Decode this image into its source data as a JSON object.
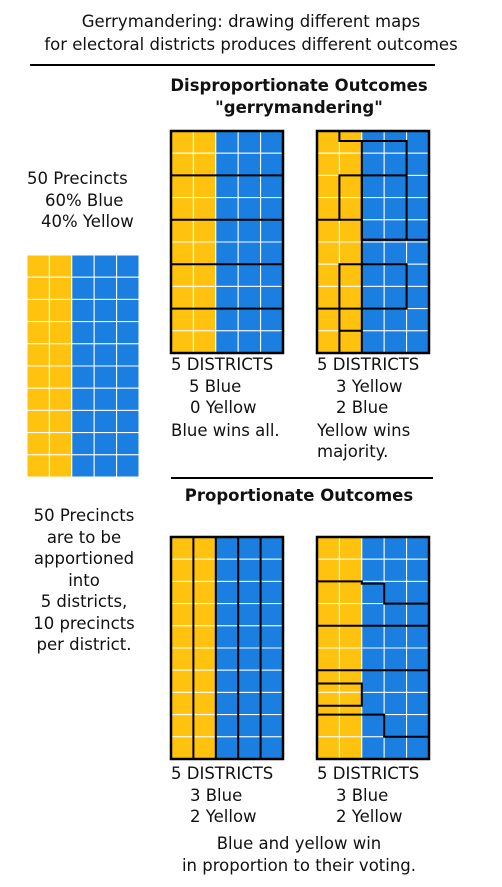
{
  "title": {
    "line1": "Gerrymandering: drawing different maps",
    "line2": "for electoral districts produces different outcomes"
  },
  "colors": {
    "blue": "#1a7fe0",
    "yellow": "#ffc20e",
    "line": "#000000",
    "grid": "#ffffff"
  },
  "left": {
    "header": [
      "50 Precincts",
      "60% Blue",
      "40% Yellow"
    ],
    "footer": [
      "50 Precincts",
      "are to be",
      "apportioned",
      "into",
      "5 districts,",
      "10 precincts",
      "per district."
    ]
  },
  "disproportionate": {
    "heading1": "Disproportionate Outcomes",
    "heading2": "\"gerrymandering\"",
    "map_a": {
      "caption": [
        "5 DISTRICTS",
        "5 Blue",
        "0 Yellow",
        "Blue wins all."
      ]
    },
    "map_b": {
      "caption": [
        "5 DISTRICTS",
        "3 Yellow",
        "2 Blue",
        "Yellow wins",
        "majority."
      ]
    }
  },
  "proportionate": {
    "heading": "Proportionate Outcomes",
    "map_c": {
      "caption": [
        "5 DISTRICTS",
        "3 Blue",
        "2 Yellow"
      ]
    },
    "map_d": {
      "caption": [
        "5 DISTRICTS",
        "3 Blue",
        "2 Yellow"
      ]
    },
    "conclusion": [
      "Blue and yellow win",
      "in proportion to their voting."
    ]
  }
}
